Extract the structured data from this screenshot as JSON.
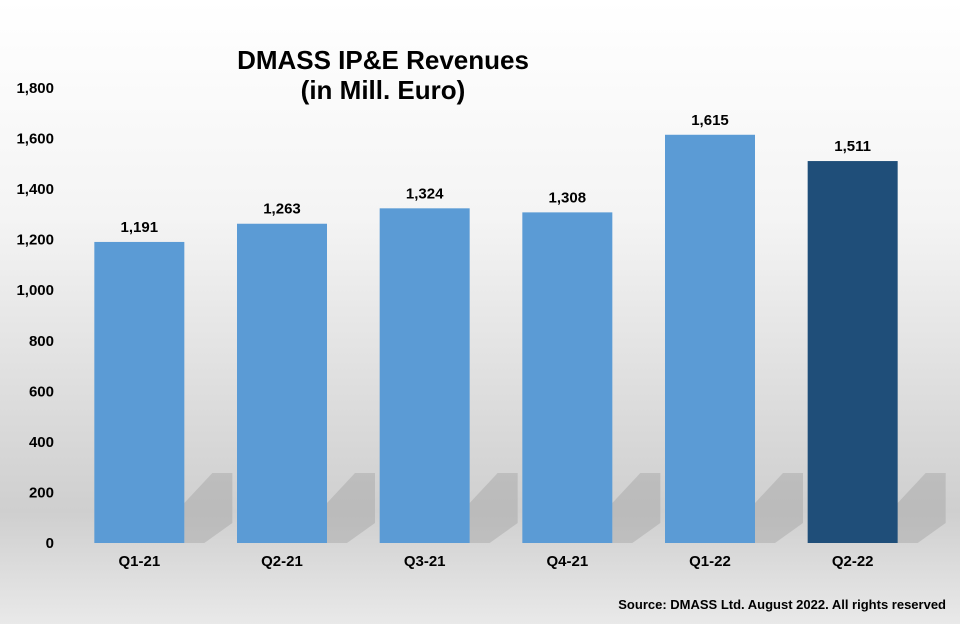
{
  "chart_data": {
    "type": "bar",
    "title": [
      "DMASS IP&E Revenues",
      "(in Mill. Euro)"
    ],
    "categories": [
      "Q1-21",
      "Q2-21",
      "Q3-21",
      "Q4-21",
      "Q1-22",
      "Q2-22"
    ],
    "values": [
      1191,
      1263,
      1324,
      1308,
      1615,
      1511
    ],
    "data_labels": [
      "1,191",
      "1,263",
      "1,324",
      "1,308",
      "1,615",
      "1,511"
    ],
    "ylim": [
      0,
      1800
    ],
    "yticks": [
      0,
      200,
      400,
      600,
      800,
      1000,
      1200,
      1400,
      1600,
      1800
    ],
    "ytick_labels": [
      "0",
      "200",
      "400",
      "600",
      "800",
      "1,000",
      "1,200",
      "1,400",
      "1,600",
      "1,800"
    ],
    "bar_colors": [
      "#5b9bd5",
      "#5b9bd5",
      "#5b9bd5",
      "#5b9bd5",
      "#5b9bd5",
      "#1f4e79"
    ],
    "grid": false,
    "legend": "none"
  },
  "footer": {
    "source": "Source: DMASS Ltd. August 2022. All rights reserved"
  }
}
